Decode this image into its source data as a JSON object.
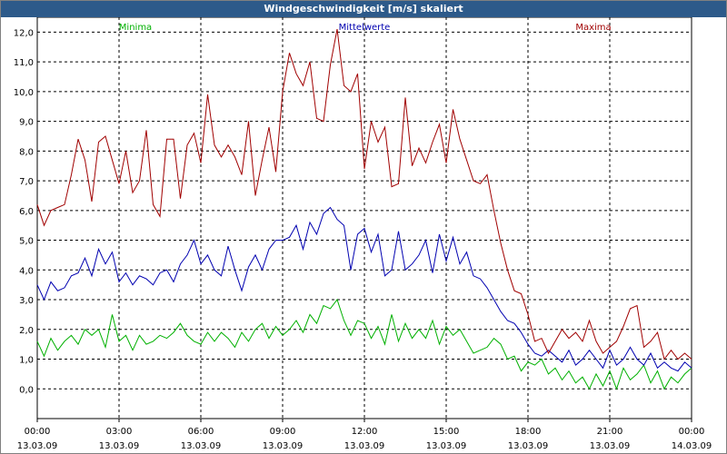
{
  "chart_data": {
    "type": "line",
    "title": "Windgeschwindigkeit [m/s] skaliert",
    "x": [
      0,
      0.25,
      0.5,
      0.75,
      1,
      1.25,
      1.5,
      1.75,
      2,
      2.25,
      2.5,
      2.75,
      3,
      3.25,
      3.5,
      3.75,
      4,
      4.25,
      4.5,
      4.75,
      5,
      5.25,
      5.5,
      5.75,
      6,
      6.25,
      6.5,
      6.75,
      7,
      7.25,
      7.5,
      7.75,
      8,
      8.25,
      8.5,
      8.75,
      9,
      9.25,
      9.5,
      9.75,
      10,
      10.25,
      10.5,
      10.75,
      11,
      11.25,
      11.5,
      11.75,
      12,
      12.25,
      12.5,
      12.75,
      13,
      13.25,
      13.5,
      13.75,
      14,
      14.25,
      14.5,
      14.75,
      15,
      15.25,
      15.5,
      15.75,
      16,
      16.25,
      16.5,
      16.75,
      17,
      17.25,
      17.5,
      17.75,
      18,
      18.25,
      18.5,
      18.75,
      19,
      19.25,
      19.5,
      19.75,
      20,
      20.25,
      20.5,
      20.75,
      21,
      21.25,
      21.5,
      21.75,
      22,
      22.25,
      22.5,
      22.75,
      23,
      23.25,
      23.5,
      23.75,
      24
    ],
    "series": [
      {
        "name": "Minima",
        "color": "#00b000",
        "values": [
          1.6,
          1.1,
          1.7,
          1.3,
          1.6,
          1.8,
          1.5,
          2.0,
          1.8,
          2.0,
          1.4,
          2.5,
          1.6,
          1.8,
          1.3,
          1.8,
          1.5,
          1.6,
          1.8,
          1.7,
          1.9,
          2.2,
          1.8,
          1.6,
          1.5,
          1.9,
          1.6,
          1.9,
          1.7,
          1.4,
          1.9,
          1.6,
          2.0,
          2.2,
          1.7,
          2.1,
          1.8,
          2.0,
          2.3,
          1.9,
          2.5,
          2.2,
          2.8,
          2.7,
          3.0,
          2.3,
          1.8,
          2.3,
          2.2,
          1.7,
          2.1,
          1.5,
          2.5,
          1.6,
          2.2,
          1.7,
          2.0,
          1.7,
          2.3,
          1.5,
          2.1,
          1.8,
          2.0,
          1.6,
          1.2,
          1.3,
          1.4,
          1.7,
          1.5,
          1.0,
          1.1,
          0.6,
          0.9,
          0.8,
          1.0,
          0.5,
          0.7,
          0.3,
          0.6,
          0.2,
          0.4,
          0.0,
          0.5,
          0.1,
          0.6,
          0.0,
          0.7,
          0.3,
          0.5,
          0.8,
          0.2,
          0.6,
          0.0,
          0.4,
          0.2,
          0.5,
          0.7
        ]
      },
      {
        "name": "Mittelwerte",
        "color": "#0000b0",
        "values": [
          3.5,
          3.0,
          3.6,
          3.3,
          3.4,
          3.8,
          3.9,
          4.4,
          3.8,
          4.7,
          4.2,
          4.6,
          3.6,
          3.9,
          3.5,
          3.8,
          3.7,
          3.5,
          3.9,
          4.0,
          3.6,
          4.2,
          4.5,
          5.0,
          4.2,
          4.5,
          4.0,
          3.8,
          4.8,
          4.0,
          3.3,
          4.1,
          4.5,
          4.0,
          4.7,
          5.0,
          5.0,
          5.1,
          5.5,
          4.7,
          5.6,
          5.2,
          5.9,
          6.1,
          5.7,
          5.5,
          4.0,
          5.2,
          5.4,
          4.6,
          5.2,
          3.8,
          4.0,
          5.3,
          4.0,
          4.2,
          4.5,
          5.0,
          3.9,
          5.2,
          4.3,
          5.1,
          4.2,
          4.6,
          3.8,
          3.7,
          3.4,
          3.0,
          2.6,
          2.3,
          2.2,
          1.9,
          1.5,
          1.2,
          1.1,
          1.3,
          1.1,
          0.9,
          1.3,
          0.8,
          1.0,
          1.3,
          1.0,
          0.7,
          1.3,
          0.8,
          1.0,
          1.4,
          1.0,
          0.8,
          1.2,
          0.7,
          0.9,
          0.7,
          0.6,
          0.9,
          0.7
        ]
      },
      {
        "name": "Maxima",
        "color": "#a00000",
        "values": [
          6.2,
          5.5,
          6.0,
          6.1,
          6.2,
          7.2,
          8.4,
          7.7,
          6.3,
          8.3,
          8.5,
          7.7,
          6.9,
          8.0,
          6.6,
          7.0,
          8.7,
          6.2,
          5.8,
          8.4,
          8.4,
          6.4,
          8.2,
          8.6,
          7.6,
          9.9,
          8.2,
          7.8,
          8.2,
          7.8,
          7.2,
          9.0,
          6.5,
          7.7,
          8.8,
          7.3,
          10.0,
          11.3,
          10.6,
          10.2,
          11.0,
          9.1,
          9.0,
          10.9,
          12.1,
          10.2,
          10.0,
          10.6,
          7.4,
          9.0,
          8.3,
          8.8,
          6.8,
          6.9,
          9.8,
          7.5,
          8.1,
          7.6,
          8.3,
          8.9,
          7.6,
          9.4,
          8.4,
          7.7,
          7.0,
          6.9,
          7.2,
          6.0,
          4.9,
          4.0,
          3.3,
          3.2,
          2.5,
          1.6,
          1.7,
          1.2,
          1.6,
          2.0,
          1.7,
          1.9,
          1.6,
          2.3,
          1.6,
          1.2,
          1.4,
          1.6,
          2.1,
          2.7,
          2.8,
          1.4,
          1.6,
          1.9,
          1.0,
          1.3,
          1.0,
          1.2,
          1.0
        ]
      }
    ],
    "xlim": [
      0,
      24
    ],
    "xticks": [
      {
        "value": 0,
        "label": "00:00",
        "date": "13.03.09"
      },
      {
        "value": 3,
        "label": "03:00",
        "date": "13.03.09"
      },
      {
        "value": 6,
        "label": "06:00",
        "date": "13.03.09"
      },
      {
        "value": 9,
        "label": "09:00",
        "date": "13.03.09"
      },
      {
        "value": 12,
        "label": "12:00",
        "date": "13.03.09"
      },
      {
        "value": 15,
        "label": "15:00",
        "date": "13.03.09"
      },
      {
        "value": 18,
        "label": "18:00",
        "date": "13.03.09"
      },
      {
        "value": 21,
        "label": "21:00",
        "date": "13.03.09"
      },
      {
        "value": 24,
        "label": "00:00",
        "date": "14.03.09"
      }
    ],
    "ylim": [
      -1.0,
      12.5
    ],
    "yticks": [
      {
        "value": 0,
        "label": "0,0"
      },
      {
        "value": 1,
        "label": "1,0"
      },
      {
        "value": 2,
        "label": "2,0"
      },
      {
        "value": 3,
        "label": "3,0"
      },
      {
        "value": 4,
        "label": "4,0"
      },
      {
        "value": 5,
        "label": "5,0"
      },
      {
        "value": 6,
        "label": "6,0"
      },
      {
        "value": 7,
        "label": "7,0"
      },
      {
        "value": 8,
        "label": "8,0"
      },
      {
        "value": 9,
        "label": "9,0"
      },
      {
        "value": 10,
        "label": "10,0"
      },
      {
        "value": 11,
        "label": "11,0"
      },
      {
        "value": 12,
        "label": "12,0"
      }
    ],
    "grid": true
  }
}
